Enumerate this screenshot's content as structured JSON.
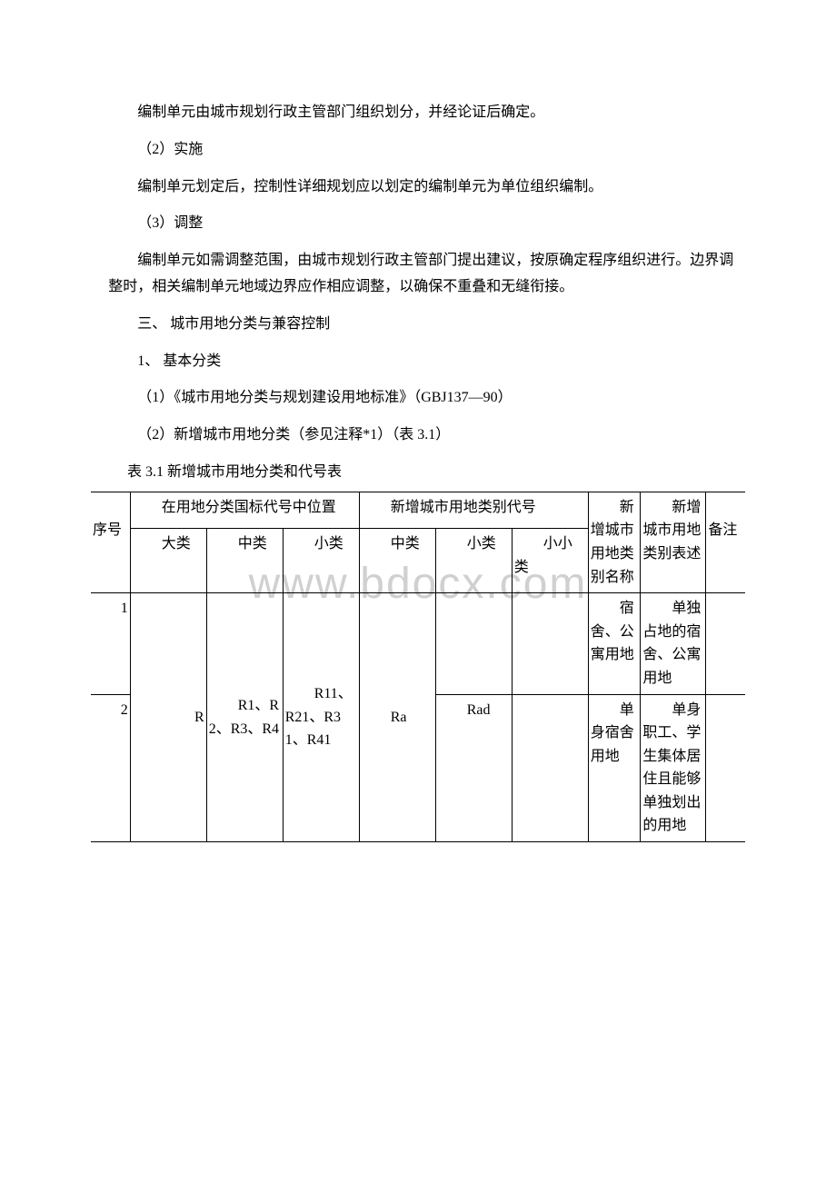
{
  "paragraphs": {
    "p1": "编制单元由城市规划行政主管部门组织划分，并经论证后确定。",
    "p2": "（2）实施",
    "p3": "编制单元划定后，控制性详细规划应以划定的编制单元为单位组织编制。",
    "p4": "（3）调整",
    "p5": "编制单元如需调整范围，由城市规划行政主管部门提出建议，按原确定程序组织进行。边界调整时，相关编制单元地域边界应作相应调整，以确保不重叠和无缝衔接。",
    "p6": "三、 城市用地分类与兼容控制",
    "p7": "1、 基本分类",
    "p8": "（1）《城市用地分类与规划建设用地标准》（GBJ137—90）",
    "p9": "（2）新增城市用地分类（参见注释*1）（表 3.1）",
    "tableTitle": "表 3.1  新增城市用地分类和代号表"
  },
  "watermark": "www.bdocx.com",
  "table": {
    "headers": {
      "seq": "序号",
      "groupA": "在用地分类国标代号中位置",
      "groupB": "新增城市用地类别代号",
      "colH": "新增城市用地类别名称",
      "colI": "新增城市用地类别表述",
      "colJ": "备注",
      "sub_big": "大类",
      "sub_mid": "中类",
      "sub_small": "小类",
      "sub_mid2": "中类",
      "sub_small2": "小类",
      "sub_ss": "小小类"
    },
    "body": {
      "seq1": "1",
      "seq2": "2",
      "a": "R",
      "b": "R1、R2、R3、R4",
      "c": "R11、R21、R31、R41",
      "d": "Ra",
      "e_row2": "Rad",
      "g1": "宿舍、公寓用地",
      "g2": "单身宿舍用地",
      "h1": "单独占地的宿舍、公寓用地",
      "h2": "单身职工、学生集体居住且能够单独划出的用地"
    }
  },
  "style": {
    "background": "#ffffff",
    "text_color": "#000000",
    "watermark_color": "#d0d0d0",
    "border_color": "#000000",
    "body_fontsize": 16,
    "watermark_fontsize": 48
  }
}
